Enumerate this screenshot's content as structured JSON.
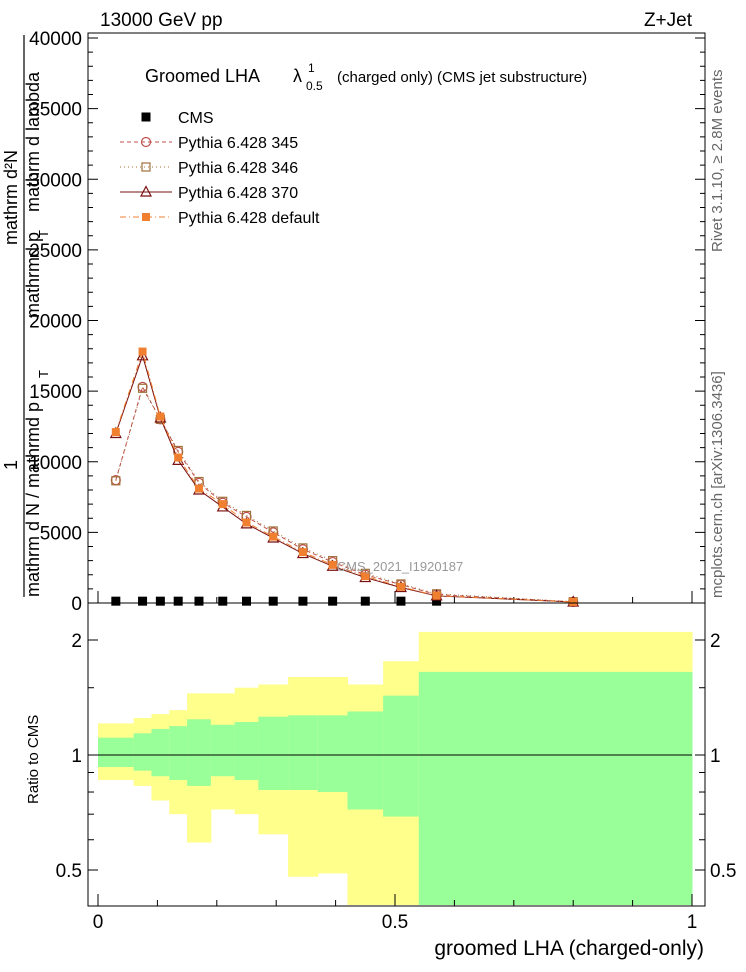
{
  "header": {
    "left": "13000 GeV pp",
    "right": "Z+Jet"
  },
  "side_labels": {
    "rivet": "Rivet 3.1.10, ≥ 2.8M events",
    "mcplots": "mcplots.cern.ch [arXiv:1306.3436]"
  },
  "chart_data": {
    "title": "Groomed LHA",
    "title_symbol": "λ",
    "title_sup": "1",
    "title_sub": "0.5",
    "title_suffix": "(charged only) (CMS jet substructure)",
    "ylabel_lines": [
      "1",
      "mathrm d N / mathrmd p",
      "T",
      "mathrmd p",
      "T",
      "mathrm d²N",
      "mathrm d lambda"
    ],
    "ratio_ylabel": "Ratio to CMS",
    "xlabel": "groomed LHA (charged-only)",
    "watermark": "CMS_2021_I1920187",
    "main": {
      "type": "line",
      "xlim": [
        0,
        1
      ],
      "ylim": [
        0,
        40000
      ],
      "yticks": [
        "0",
        "5000",
        "10000",
        "15000",
        "20000",
        "25000",
        "30000",
        "35000",
        "40000"
      ],
      "ytick_values": [
        0,
        5000,
        10000,
        15000,
        20000,
        25000,
        30000,
        35000,
        40000
      ],
      "x": [
        0.03,
        0.075,
        0.105,
        0.135,
        0.17,
        0.21,
        0.25,
        0.295,
        0.345,
        0.395,
        0.45,
        0.51,
        0.57,
        0.8
      ],
      "series": [
        {
          "name": "CMS",
          "marker": "square",
          "color": "#000000",
          "dash": "",
          "values": [
            130,
            130,
            130,
            130,
            130,
            130,
            130,
            130,
            130,
            130,
            130,
            130,
            130,
            null
          ]
        },
        {
          "name": "Pythia 6.428 345",
          "marker": "circle-open",
          "color": "#c0504d",
          "dash": "4,3",
          "values": [
            8700,
            15300,
            13000,
            10700,
            8500,
            7100,
            6100,
            5000,
            3800,
            2900,
            2000,
            1300,
            600,
            80
          ]
        },
        {
          "name": "Pythia 6.428 346",
          "marker": "square-open",
          "color": "#a0703a",
          "dash": "1,3",
          "values": [
            8650,
            15200,
            13000,
            10800,
            8600,
            7200,
            6200,
            5100,
            3900,
            3000,
            2100,
            1350,
            650,
            90
          ]
        },
        {
          "name": "Pythia 6.428 370",
          "marker": "triangle-open",
          "color": "#7a0f0f",
          "dash": "",
          "values": [
            12000,
            17500,
            13100,
            10100,
            8000,
            6800,
            5600,
            4600,
            3500,
            2600,
            1800,
            1100,
            500,
            70
          ]
        },
        {
          "name": "Pythia 6.428 default",
          "marker": "square-filled",
          "color": "#f08030",
          "dash": "6,3,1,3",
          "values": [
            12100,
            17800,
            13200,
            10300,
            8100,
            7000,
            5700,
            4700,
            3600,
            2700,
            1900,
            1150,
            520,
            75
          ]
        }
      ]
    },
    "ratio": {
      "ylim": [
        0.35,
        2.3
      ],
      "yticks": [
        "0.5",
        "1",
        "2"
      ],
      "ytick_values": [
        0.5,
        1,
        2
      ],
      "xticks": [
        "0",
        "0.5",
        "1"
      ],
      "xtick_values": [
        0,
        0.5,
        1
      ],
      "bin_edges": [
        0,
        0.06,
        0.09,
        0.12,
        0.15,
        0.19,
        0.23,
        0.27,
        0.32,
        0.37,
        0.42,
        0.48,
        0.54,
        1.0
      ],
      "yellow_up": [
        1.21,
        1.25,
        1.28,
        1.31,
        1.45,
        1.45,
        1.5,
        1.53,
        1.6,
        1.6,
        1.53,
        1.76,
        2.1
      ],
      "yellow_down": [
        0.86,
        0.83,
        0.76,
        0.7,
        0.59,
        0.72,
        0.7,
        0.62,
        0.48,
        0.49,
        0.36,
        0.2,
        0.2
      ],
      "green_up": [
        1.11,
        1.14,
        1.17,
        1.19,
        1.24,
        1.2,
        1.22,
        1.26,
        1.27,
        1.27,
        1.3,
        1.43,
        1.65
      ],
      "green_down": [
        0.93,
        0.91,
        0.88,
        0.86,
        0.83,
        0.88,
        0.86,
        0.81,
        0.81,
        0.8,
        0.72,
        0.69,
        0.38
      ]
    },
    "colors": {
      "yellow": "#ffff8c",
      "green": "#99ff99"
    }
  }
}
